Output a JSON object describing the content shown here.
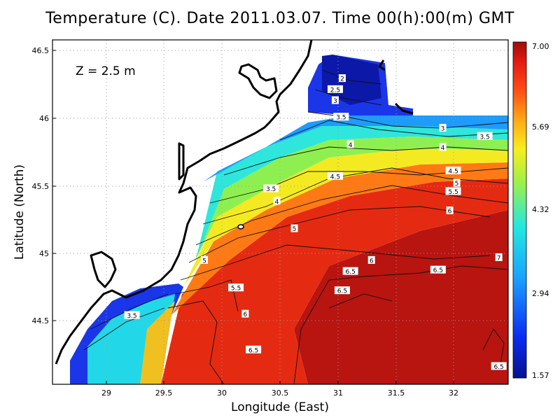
{
  "title": "Temperature (C). Date 2011.03.07. Time 00(h):00(m) GMT",
  "depth_label": "Z = 2.5 m",
  "xlabel": "Longitude (East)",
  "ylabel": "Latitude (North)",
  "x_ticks": [
    "29",
    "29.5",
    "30",
    "30.5",
    "31",
    "31.5",
    "32"
  ],
  "y_ticks": [
    "46.5",
    "46",
    "45.5",
    "45",
    "44.5"
  ],
  "colorbar": {
    "labels": [
      "7.00",
      "5.69",
      "4.32",
      "2.94",
      "1.57"
    ],
    "min": 1.57,
    "max": 7.0
  },
  "chart_data": {
    "type": "heatmap",
    "title": "Temperature (C). Date 2011.03.07. Time 00(h):00(m) GMT",
    "xlabel": "Longitude (East)",
    "ylabel": "Latitude (North)",
    "xlim": [
      28.55,
      32.45
    ],
    "ylim": [
      44.05,
      46.55
    ],
    "value_range": [
      1.57,
      7.0
    ],
    "grid": true,
    "contour_labels": [
      {
        "lon": 31.03,
        "lat": 46.27,
        "value": "2"
      },
      {
        "lon": 30.97,
        "lat": 46.19,
        "value": "2.5"
      },
      {
        "lon": 30.97,
        "lat": 46.11,
        "value": "3"
      },
      {
        "lon": 31.02,
        "lat": 45.99,
        "value": "3.5"
      },
      {
        "lon": 31.89,
        "lat": 45.91,
        "value": "3"
      },
      {
        "lon": 32.25,
        "lat": 45.85,
        "value": "3.5"
      },
      {
        "lon": 31.1,
        "lat": 45.79,
        "value": "4"
      },
      {
        "lon": 31.89,
        "lat": 45.77,
        "value": "4"
      },
      {
        "lon": 31.98,
        "lat": 45.6,
        "value": "4.5"
      },
      {
        "lon": 30.97,
        "lat": 45.56,
        "value": "4.5"
      },
      {
        "lon": 32.01,
        "lat": 45.51,
        "value": "5"
      },
      {
        "lon": 31.98,
        "lat": 45.45,
        "value": "5.5"
      },
      {
        "lon": 31.95,
        "lat": 45.31,
        "value": "6"
      },
      {
        "lon": 30.42,
        "lat": 45.47,
        "value": "3.5"
      },
      {
        "lon": 30.47,
        "lat": 45.38,
        "value": "4"
      },
      {
        "lon": 30.62,
        "lat": 45.18,
        "value": "5"
      },
      {
        "lon": 29.85,
        "lat": 44.95,
        "value": "5"
      },
      {
        "lon": 31.28,
        "lat": 44.95,
        "value": "6"
      },
      {
        "lon": 32.37,
        "lat": 44.97,
        "value": "7"
      },
      {
        "lon": 31.85,
        "lat": 44.88,
        "value": "6.5"
      },
      {
        "lon": 31.1,
        "lat": 44.87,
        "value": "6.5"
      },
      {
        "lon": 31.03,
        "lat": 44.73,
        "value": "6.5"
      },
      {
        "lon": 30.12,
        "lat": 44.75,
        "value": "5.5"
      },
      {
        "lon": 30.2,
        "lat": 44.56,
        "value": "6"
      },
      {
        "lon": 29.23,
        "lat": 44.55,
        "value": "3.5"
      },
      {
        "lon": 30.27,
        "lat": 44.3,
        "value": "6.5"
      },
      {
        "lon": 32.37,
        "lat": 44.18,
        "value": "6.5"
      }
    ]
  }
}
